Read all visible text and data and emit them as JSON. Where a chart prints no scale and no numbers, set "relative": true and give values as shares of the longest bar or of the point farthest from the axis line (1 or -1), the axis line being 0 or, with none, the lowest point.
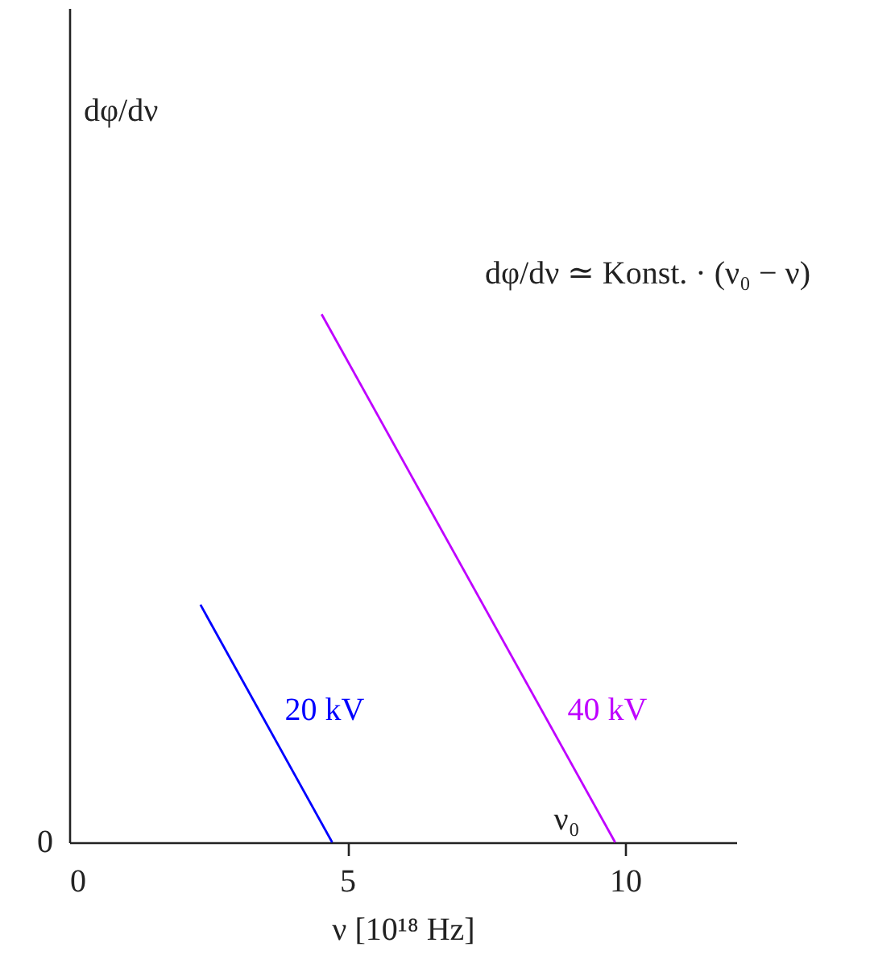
{
  "chart_data": {
    "type": "line",
    "relative": true,
    "xlabel": "ν [10¹⁸ Hz]",
    "xlim": [
      0,
      12
    ],
    "xticks": [
      0,
      5,
      10
    ],
    "annotations": [
      "dφ/dν",
      "dφ/dν ≃ Konst. · (ν₀ − ν)",
      "0",
      {
        "text": "ν₀",
        "x": 9.82,
        "y": 0
      }
    ],
    "series": [
      {
        "name": "20 kV",
        "color": "#0000ff",
        "x": [
          2.36,
          4.73
        ],
        "values": [
          0.45,
          0
        ]
      },
      {
        "name": "40 kV",
        "color": "#bf00ff",
        "x": [
          4.54,
          9.82
        ],
        "values": [
          1,
          0
        ]
      }
    ]
  }
}
